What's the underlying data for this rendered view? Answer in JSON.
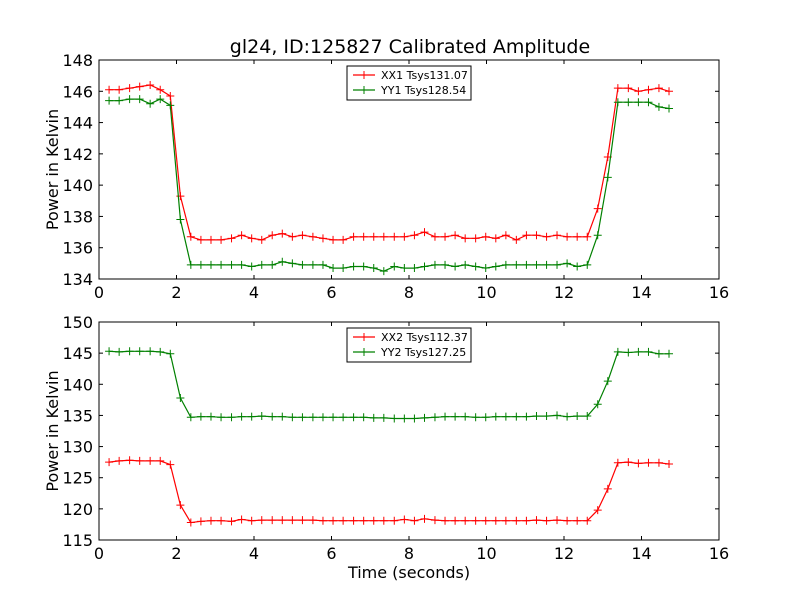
{
  "title": "gl24, ID:125827 Calibrated Amplitude",
  "colors": {
    "xx": "#ff0000",
    "yy": "#008000"
  },
  "chart_data": [
    {
      "type": "line",
      "xlabel": "",
      "ylabel": "Power in Kelvin",
      "xlim": [
        0,
        16
      ],
      "ylim": [
        134,
        148
      ],
      "xticks": [
        0,
        2,
        4,
        6,
        8,
        10,
        12,
        14,
        16
      ],
      "yticks": [
        134,
        136,
        138,
        140,
        142,
        144,
        146,
        148
      ],
      "grid": false,
      "legend_position": "top-center",
      "x": [
        0.26,
        0.52,
        0.79,
        1.05,
        1.32,
        1.58,
        1.84,
        2.1,
        2.37,
        2.63,
        2.89,
        3.15,
        3.42,
        3.68,
        3.94,
        4.2,
        4.47,
        4.73,
        4.99,
        5.25,
        5.52,
        5.78,
        6.04,
        6.3,
        6.57,
        6.83,
        7.09,
        7.35,
        7.62,
        7.88,
        8.14,
        8.4,
        8.67,
        8.93,
        9.19,
        9.45,
        9.72,
        9.98,
        10.24,
        10.5,
        10.77,
        11.03,
        11.29,
        11.55,
        11.82,
        12.08,
        12.34,
        12.6,
        12.87,
        13.13,
        13.39,
        13.66,
        13.92,
        14.18,
        14.45,
        14.71
      ],
      "series": [
        {
          "name": "XX1 Tsys131.07",
          "color": "#ff0000",
          "values": [
            146.1,
            146.1,
            146.2,
            146.3,
            146.4,
            146.1,
            145.7,
            139.3,
            136.7,
            136.5,
            136.5,
            136.5,
            136.6,
            136.8,
            136.6,
            136.5,
            136.8,
            136.9,
            136.7,
            136.8,
            136.7,
            136.6,
            136.5,
            136.5,
            136.7,
            136.7,
            136.7,
            136.7,
            136.7,
            136.7,
            136.8,
            137.0,
            136.7,
            136.7,
            136.8,
            136.6,
            136.6,
            136.7,
            136.6,
            136.8,
            136.5,
            136.8,
            136.8,
            136.7,
            136.8,
            136.7,
            136.7,
            136.7,
            138.5,
            141.8,
            146.2,
            146.2,
            146.0,
            146.1,
            146.2,
            146.0
          ]
        },
        {
          "name": "YY1 Tsys128.54",
          "color": "#008000",
          "values": [
            145.4,
            145.4,
            145.5,
            145.5,
            145.2,
            145.5,
            145.1,
            137.8,
            134.9,
            134.9,
            134.9,
            134.9,
            134.9,
            134.9,
            134.8,
            134.9,
            134.9,
            135.1,
            135.0,
            134.9,
            134.9,
            134.9,
            134.7,
            134.7,
            134.8,
            134.8,
            134.7,
            134.5,
            134.8,
            134.7,
            134.7,
            134.8,
            134.9,
            134.9,
            134.8,
            134.9,
            134.8,
            134.7,
            134.8,
            134.9,
            134.9,
            134.9,
            134.9,
            134.9,
            134.9,
            135.0,
            134.8,
            134.9,
            136.8,
            140.5,
            145.3,
            145.3,
            145.3,
            145.3,
            145.0,
            144.9
          ]
        }
      ]
    },
    {
      "type": "line",
      "xlabel": "Time (seconds)",
      "ylabel": "Power in Kelvin",
      "xlim": [
        0,
        16
      ],
      "ylim": [
        115,
        150
      ],
      "xticks": [
        0,
        2,
        4,
        6,
        8,
        10,
        12,
        14,
        16
      ],
      "yticks": [
        115,
        120,
        125,
        130,
        135,
        140,
        145,
        150
      ],
      "grid": false,
      "legend_position": "top-center",
      "x": [
        0.26,
        0.52,
        0.79,
        1.05,
        1.32,
        1.58,
        1.84,
        2.1,
        2.37,
        2.63,
        2.89,
        3.15,
        3.42,
        3.68,
        3.94,
        4.2,
        4.47,
        4.73,
        4.99,
        5.25,
        5.52,
        5.78,
        6.04,
        6.3,
        6.57,
        6.83,
        7.09,
        7.35,
        7.62,
        7.88,
        8.14,
        8.4,
        8.67,
        8.93,
        9.19,
        9.45,
        9.72,
        9.98,
        10.24,
        10.5,
        10.77,
        11.03,
        11.29,
        11.55,
        11.82,
        12.08,
        12.34,
        12.6,
        12.87,
        13.13,
        13.39,
        13.66,
        13.92,
        14.18,
        14.45,
        14.71
      ],
      "series": [
        {
          "name": "XX2 Tsys112.37",
          "color": "#ff0000",
          "values": [
            127.5,
            127.7,
            127.8,
            127.7,
            127.7,
            127.7,
            127.1,
            120.6,
            117.8,
            118.0,
            118.1,
            118.1,
            118.0,
            118.3,
            118.1,
            118.2,
            118.2,
            118.2,
            118.2,
            118.2,
            118.2,
            118.1,
            118.1,
            118.1,
            118.1,
            118.1,
            118.1,
            118.1,
            118.1,
            118.3,
            118.1,
            118.4,
            118.2,
            118.1,
            118.1,
            118.1,
            118.1,
            118.1,
            118.1,
            118.1,
            118.1,
            118.1,
            118.2,
            118.1,
            118.2,
            118.1,
            118.1,
            118.1,
            119.8,
            123.2,
            127.4,
            127.5,
            127.3,
            127.4,
            127.4,
            127.2
          ]
        },
        {
          "name": "YY2 Tsys127.25",
          "color": "#008000",
          "values": [
            145.3,
            145.2,
            145.3,
            145.3,
            145.3,
            145.2,
            144.9,
            137.8,
            134.7,
            134.8,
            134.8,
            134.7,
            134.7,
            134.8,
            134.8,
            134.9,
            134.8,
            134.8,
            134.7,
            134.7,
            134.7,
            134.7,
            134.7,
            134.7,
            134.7,
            134.7,
            134.6,
            134.6,
            134.5,
            134.5,
            134.5,
            134.6,
            134.7,
            134.8,
            134.8,
            134.8,
            134.7,
            134.7,
            134.8,
            134.8,
            134.8,
            134.8,
            134.9,
            134.9,
            135.0,
            134.8,
            134.9,
            134.9,
            136.8,
            140.5,
            145.2,
            145.1,
            145.2,
            145.2,
            144.9,
            144.9
          ]
        }
      ]
    }
  ]
}
